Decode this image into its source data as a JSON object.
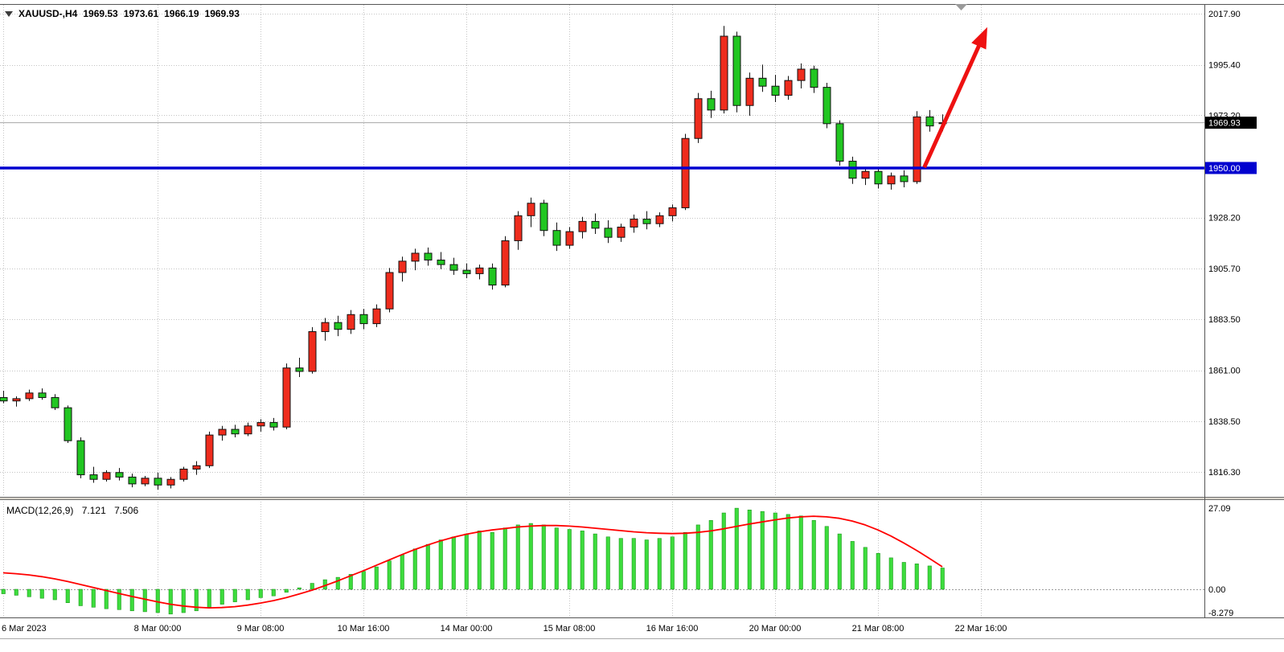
{
  "header": {
    "symbol_timeframe": "XAUUSD-,H4",
    "open": "1969.53",
    "high": "1973.61",
    "low": "1966.19",
    "close": "1969.93"
  },
  "indicator": {
    "name": "MACD(12,26,9)",
    "main_value": "7.121",
    "signal_value": "7.506"
  },
  "icons": {
    "symbol_collapse_icon": "triangle-down",
    "chart_shift_marker_icon": "triangle-down"
  },
  "chart_data": {
    "type": "candlestick",
    "symbol": "XAUUSD-",
    "timeframe": "H4",
    "grid": "dotted",
    "x_axis": {
      "labels": [
        {
          "text": "6 Mar 2023",
          "bar": 0
        },
        {
          "text": "8 Mar 00:00",
          "bar": 12
        },
        {
          "text": "9 Mar 08:00",
          "bar": 20
        },
        {
          "text": "10 Mar 16:00",
          "bar": 28
        },
        {
          "text": "14 Mar 00:00",
          "bar": 36
        },
        {
          "text": "15 Mar 08:00",
          "bar": 44
        },
        {
          "text": "16 Mar 16:00",
          "bar": 52
        },
        {
          "text": "20 Mar 00:00",
          "bar": 60
        },
        {
          "text": "21 Mar 08:00",
          "bar": 68
        },
        {
          "text": "22 Mar 16:00",
          "bar": 76
        }
      ]
    },
    "y_axis": {
      "labels": [
        "2017.90",
        "1995.40",
        "1973.20",
        "1928.20",
        "1905.70",
        "1883.50",
        "1861.00",
        "1838.50",
        "1816.30"
      ],
      "top_price": 2021.8,
      "bottom_price": 1805.3
    },
    "current_price": {
      "value": 1969.93,
      "badge": "1969.93"
    },
    "horizontal_line": {
      "value": 1950.0,
      "badge": "1950.00"
    },
    "annotations": {
      "trend_arrow": {
        "x1_bar": 71.6,
        "price1": 1950.3,
        "x2_bar": 76.5,
        "price2": 2012.0
      }
    },
    "candles": [
      [
        1849,
        1852,
        1846.5,
        1847.5
      ],
      [
        1847.5,
        1849.5,
        1845,
        1848.5
      ],
      [
        1848.5,
        1852.5,
        1847.5,
        1851
      ],
      [
        1851,
        1853,
        1848,
        1849
      ],
      [
        1849,
        1850.5,
        1843.5,
        1844.5
      ],
      [
        1844.5,
        1845.5,
        1829,
        1830
      ],
      [
        1830,
        1831.5,
        1813.5,
        1815
      ],
      [
        1815,
        1818.5,
        1811.5,
        1813
      ],
      [
        1813,
        1817,
        1812,
        1816
      ],
      [
        1816,
        1818,
        1812.5,
        1814
      ],
      [
        1814,
        1815.5,
        1809.5,
        1811
      ],
      [
        1811,
        1814.5,
        1810,
        1813.5
      ],
      [
        1813.5,
        1816,
        1808.5,
        1810.5
      ],
      [
        1810.5,
        1814,
        1809,
        1813
      ],
      [
        1813,
        1818.5,
        1812,
        1817.5
      ],
      [
        1817.5,
        1821,
        1815,
        1819
      ],
      [
        1819,
        1834,
        1818,
        1832.5
      ],
      [
        1832.5,
        1836.5,
        1830,
        1835
      ],
      [
        1835,
        1837,
        1831.5,
        1833
      ],
      [
        1833,
        1838,
        1832,
        1836.5
      ],
      [
        1836.5,
        1839.5,
        1834,
        1838
      ],
      [
        1838,
        1840,
        1834.5,
        1836
      ],
      [
        1836,
        1864,
        1835,
        1862
      ],
      [
        1862,
        1866.5,
        1858,
        1860.5
      ],
      [
        1860.5,
        1880,
        1859.5,
        1878
      ],
      [
        1878,
        1884,
        1874,
        1882
      ],
      [
        1882,
        1885,
        1876,
        1879
      ],
      [
        1879,
        1887.5,
        1877,
        1885.5
      ],
      [
        1885.5,
        1888,
        1879,
        1881.5
      ],
      [
        1881.5,
        1890,
        1880,
        1888
      ],
      [
        1888,
        1906,
        1886.5,
        1904
      ],
      [
        1904,
        1911,
        1900,
        1909
      ],
      [
        1909,
        1914.5,
        1905,
        1912.5
      ],
      [
        1912.5,
        1915,
        1907,
        1909.5
      ],
      [
        1909.5,
        1913,
        1905.5,
        1907.5
      ],
      [
        1907.5,
        1910.5,
        1903,
        1905
      ],
      [
        1905,
        1908,
        1901.5,
        1903.5
      ],
      [
        1903.5,
        1907.5,
        1901,
        1906
      ],
      [
        1906,
        1908,
        1896.5,
        1898.5
      ],
      [
        1898.5,
        1920,
        1897.5,
        1918
      ],
      [
        1918,
        1931,
        1914,
        1929
      ],
      [
        1929,
        1937,
        1924,
        1934.5
      ],
      [
        1934.5,
        1936,
        1920,
        1922.5
      ],
      [
        1922.5,
        1926,
        1913.5,
        1916
      ],
      [
        1916,
        1924,
        1914.5,
        1922
      ],
      [
        1922,
        1928.5,
        1919,
        1926.5
      ],
      [
        1926.5,
        1930,
        1921,
        1923.5
      ],
      [
        1923.5,
        1927,
        1917,
        1919.5
      ],
      [
        1919.5,
        1925.5,
        1917.5,
        1924
      ],
      [
        1924,
        1929.5,
        1921.5,
        1927.5
      ],
      [
        1927.5,
        1931,
        1923,
        1925.5
      ],
      [
        1925.5,
        1930.5,
        1924,
        1929
      ],
      [
        1929,
        1934,
        1926.5,
        1932.5
      ],
      [
        1932.5,
        1965,
        1931.5,
        1963
      ],
      [
        1963,
        1983,
        1961,
        1980.5
      ],
      [
        1980.5,
        1984,
        1972,
        1975.5
      ],
      [
        1975.5,
        2012.5,
        1974,
        2008
      ],
      [
        2008,
        2010,
        1974.5,
        1977.5
      ],
      [
        1977.5,
        1992,
        1973,
        1989.5
      ],
      [
        1989.5,
        1995.5,
        1983.5,
        1986
      ],
      [
        1986,
        1991,
        1979,
        1982
      ],
      [
        1982,
        1990.5,
        1980,
        1988.5
      ],
      [
        1988.5,
        1996,
        1985,
        1993.5
      ],
      [
        1993.5,
        1995,
        1983,
        1985.5
      ],
      [
        1985.5,
        1987.5,
        1967.5,
        1969.5
      ],
      [
        1969.5,
        1971,
        1951,
        1953
      ],
      [
        1953,
        1955,
        1943,
        1945.5
      ],
      [
        1945.5,
        1950,
        1942.5,
        1948.5
      ],
      [
        1948.5,
        1950.5,
        1941,
        1943
      ],
      [
        1943,
        1948,
        1940.5,
        1946.5
      ],
      [
        1946.5,
        1949,
        1941.5,
        1944
      ],
      [
        1944,
        1975,
        1943,
        1972.5
      ],
      [
        1972.5,
        1975.5,
        1966,
        1968.5
      ],
      [
        1969.53,
        1973.61,
        1966.19,
        1969.93
      ]
    ],
    "macd": {
      "label": "MACD(12,26,9)",
      "y_labels": [
        "27.09",
        "0.00",
        "-8.279"
      ],
      "max": 29.8,
      "min": -9.4,
      "histogram": [
        -1.5,
        -2,
        -2.5,
        -3,
        -3.5,
        -4.5,
        -5.5,
        -6,
        -6.5,
        -6.8,
        -7.2,
        -7.5,
        -7.8,
        -8.279,
        -7.8,
        -7.2,
        -6,
        -5,
        -4.2,
        -3.5,
        -2.8,
        -2.2,
        -1,
        0.5,
        2,
        3.2,
        4,
        5,
        6,
        7.5,
        9.5,
        11.5,
        13.5,
        15,
        16.5,
        17.5,
        18.5,
        19.5,
        19,
        20.5,
        21.5,
        22,
        21.5,
        20.5,
        20,
        19.5,
        18.5,
        17.5,
        17,
        17,
        16.5,
        17,
        17.5,
        19,
        21.5,
        23,
        25.5,
        27.09,
        26.5,
        26,
        25.5,
        25,
        24.5,
        23,
        21,
        18.5,
        16,
        14,
        12,
        10.5,
        9,
        8.5,
        7.8,
        7.121
      ],
      "signal": [
        5.5,
        5.2,
        4.8,
        4.2,
        3.5,
        2.6,
        1.6,
        0.6,
        -0.4,
        -1.4,
        -2.4,
        -3.3,
        -4.2,
        -5,
        -5.6,
        -6,
        -6.2,
        -6.1,
        -5.8,
        -5.3,
        -4.6,
        -3.8,
        -2.8,
        -1.6,
        -0.3,
        1.2,
        2.8,
        4.5,
        6.2,
        8,
        9.8,
        11.6,
        13.3,
        14.8,
        16.2,
        17.4,
        18.4,
        19.2,
        19.8,
        20.3,
        20.8,
        21.1,
        21.3,
        21.3,
        21.1,
        20.8,
        20.4,
        20,
        19.6,
        19.2,
        18.9,
        18.7,
        18.6,
        18.7,
        19,
        19.5,
        20.2,
        21,
        21.8,
        22.5,
        23.2,
        23.8,
        24.2,
        24.4,
        24.2,
        23.7,
        22.8,
        21.5,
        19.8,
        17.8,
        15.5,
        13,
        10.3,
        7.506
      ]
    },
    "colors": {
      "bull": "#ef2c1d",
      "bear": "#21c621",
      "wick": "#111111",
      "macd_hist": "#3ddc3d",
      "macd_hist_edge": "#0c8a0c",
      "macd_signal": "#ff0000",
      "hline": "#0202cf",
      "arrow": "#ee1111",
      "grid": "#c4c4c4",
      "current_price_line": "#a6a6a6",
      "price_badge_bg": "#000000"
    }
  }
}
